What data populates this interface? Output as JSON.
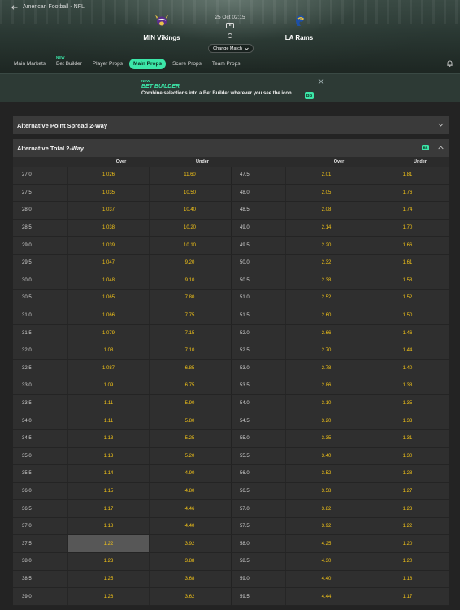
{
  "breadcrumb": {
    "text": "American Football - NFL"
  },
  "match": {
    "home_team": "MIN Vikings",
    "away_team": "LA Rams",
    "kickoff": "25 Oct 02:15",
    "change_match_label": "Change Match"
  },
  "tabs": [
    {
      "label": "Main Markets",
      "badge": ""
    },
    {
      "label": "Bet Builder",
      "badge": "NEW"
    },
    {
      "label": "Player Props",
      "badge": ""
    },
    {
      "label": "Main Props",
      "badge": "",
      "active": true
    },
    {
      "label": "Score Props",
      "badge": ""
    },
    {
      "label": "Team Props",
      "badge": ""
    }
  ],
  "bet_builder_banner": {
    "new_label": "NEW",
    "title": "BET BUILDER",
    "description": "Combine selections into a Bet Builder wherever you see the icon",
    "badge": "BB"
  },
  "sections": [
    {
      "title": "Alternative Point Spread 2-Way",
      "expanded": false
    },
    {
      "title": "Alternative Total 2-Way",
      "expanded": true,
      "badge": "BB"
    }
  ],
  "table": {
    "headers": {
      "over": "Over",
      "under": "Under"
    },
    "rows": [
      {
        "l_line": "27.0",
        "l_over": "1.026",
        "l_under": "11.60",
        "r_line": "47.5",
        "r_over": "2.01",
        "r_under": "1.81"
      },
      {
        "l_line": "27.5",
        "l_over": "1.035",
        "l_under": "10.50",
        "r_line": "48.0",
        "r_over": "2.05",
        "r_under": "1.76"
      },
      {
        "l_line": "28.0",
        "l_over": "1.037",
        "l_under": "10.40",
        "r_line": "48.5",
        "r_over": "2.08",
        "r_under": "1.74"
      },
      {
        "l_line": "28.5",
        "l_over": "1.038",
        "l_under": "10.20",
        "r_line": "49.0",
        "r_over": "2.14",
        "r_under": "1.70"
      },
      {
        "l_line": "29.0",
        "l_over": "1.039",
        "l_under": "10.10",
        "r_line": "49.5",
        "r_over": "2.20",
        "r_under": "1.66"
      },
      {
        "l_line": "29.5",
        "l_over": "1.047",
        "l_under": "9.20",
        "r_line": "50.0",
        "r_over": "2.32",
        "r_under": "1.61"
      },
      {
        "l_line": "30.0",
        "l_over": "1.048",
        "l_under": "9.10",
        "r_line": "50.5",
        "r_over": "2.38",
        "r_under": "1.58"
      },
      {
        "l_line": "30.5",
        "l_over": "1.065",
        "l_under": "7.80",
        "r_line": "51.0",
        "r_over": "2.52",
        "r_under": "1.52"
      },
      {
        "l_line": "31.0",
        "l_over": "1.066",
        "l_under": "7.75",
        "r_line": "51.5",
        "r_over": "2.60",
        "r_under": "1.50"
      },
      {
        "l_line": "31.5",
        "l_over": "1.079",
        "l_under": "7.15",
        "r_line": "52.0",
        "r_over": "2.66",
        "r_under": "1.46"
      },
      {
        "l_line": "32.0",
        "l_over": "1.08",
        "l_under": "7.10",
        "r_line": "52.5",
        "r_over": "2.70",
        "r_under": "1.44"
      },
      {
        "l_line": "32.5",
        "l_over": "1.087",
        "l_under": "6.85",
        "r_line": "53.0",
        "r_over": "2.78",
        "r_under": "1.40"
      },
      {
        "l_line": "33.0",
        "l_over": "1.09",
        "l_under": "6.75",
        "r_line": "53.5",
        "r_over": "2.86",
        "r_under": "1.38"
      },
      {
        "l_line": "33.5",
        "l_over": "1.11",
        "l_under": "5.90",
        "r_line": "54.0",
        "r_over": "3.10",
        "r_under": "1.35"
      },
      {
        "l_line": "34.0",
        "l_over": "1.11",
        "l_under": "5.80",
        "r_line": "54.5",
        "r_over": "3.20",
        "r_under": "1.33"
      },
      {
        "l_line": "34.5",
        "l_over": "1.13",
        "l_under": "5.25",
        "r_line": "55.0",
        "r_over": "3.35",
        "r_under": "1.31"
      },
      {
        "l_line": "35.0",
        "l_over": "1.13",
        "l_under": "5.20",
        "r_line": "55.5",
        "r_over": "3.40",
        "r_under": "1.30"
      },
      {
        "l_line": "35.5",
        "l_over": "1.14",
        "l_under": "4.90",
        "r_line": "56.0",
        "r_over": "3.52",
        "r_under": "1.28"
      },
      {
        "l_line": "36.0",
        "l_over": "1.15",
        "l_under": "4.80",
        "r_line": "56.5",
        "r_over": "3.58",
        "r_under": "1.27"
      },
      {
        "l_line": "36.5",
        "l_over": "1.17",
        "l_under": "4.46",
        "r_line": "57.0",
        "r_over": "3.82",
        "r_under": "1.23"
      },
      {
        "l_line": "37.0",
        "l_over": "1.18",
        "l_under": "4.40",
        "r_line": "57.5",
        "r_over": "3.92",
        "r_under": "1.22"
      },
      {
        "l_line": "37.5",
        "l_over": "1.22",
        "l_under": "3.92",
        "r_line": "58.0",
        "r_over": "4.25",
        "r_under": "1.20",
        "selected": "l_over"
      },
      {
        "l_line": "38.0",
        "l_over": "1.23",
        "l_under": "3.88",
        "r_line": "58.5",
        "r_over": "4.30",
        "r_under": "1.20"
      },
      {
        "l_line": "38.5",
        "l_over": "1.25",
        "l_under": "3.68",
        "r_line": "59.0",
        "r_over": "4.40",
        "r_under": "1.18"
      },
      {
        "l_line": "39.0",
        "l_over": "1.26",
        "l_under": "3.62",
        "r_line": "59.5",
        "r_over": "4.44",
        "r_under": "1.17"
      }
    ]
  },
  "colors": {
    "accent": "#3ce6a8",
    "odds": "#f5c518",
    "selected_bg": "#575757"
  }
}
